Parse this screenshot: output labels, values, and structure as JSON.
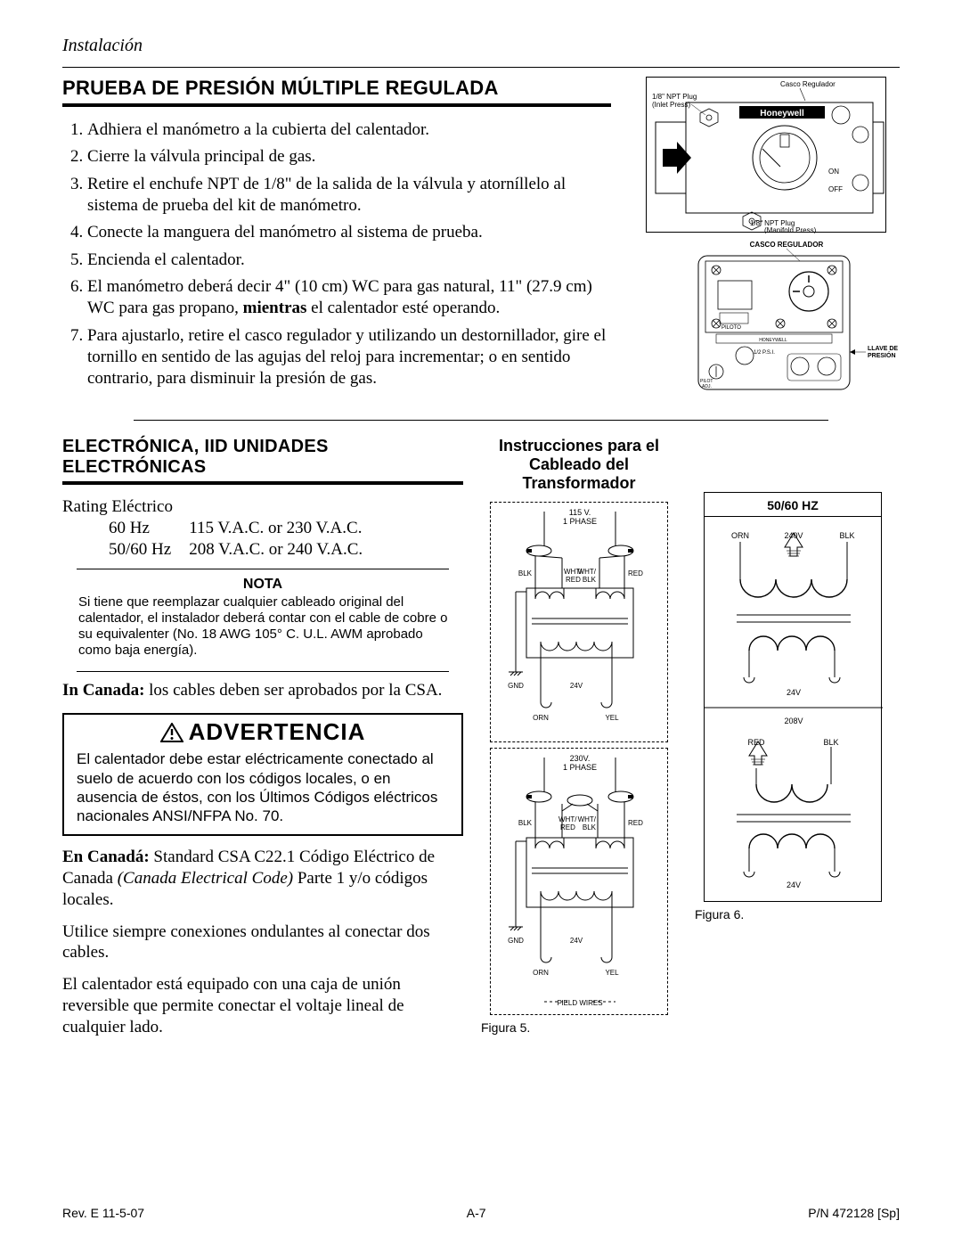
{
  "header": {
    "section": "Instalación"
  },
  "section1": {
    "heading": "PRUEBA DE PRESIÓN MÚLTIPLE REGULADA",
    "items": [
      "Adhiera el manómetro a la cubierta del calentador.",
      "Cierre la válvula principal de gas.",
      "Retire el enchufe NPT de 1/8\" de la salida de la válvula y atorníllelo al sistema de prueba del kit de manómetro.",
      "Conecte la manguera del manómetro al sistema de prueba.",
      "Encienda el calentador.",
      "El manómetro deberá decir 4\" (10 cm) WC para gas natural, 11\" (27.9 cm) WC para gas propano, mientras el calentador esté operando.",
      "Para ajustarlo, retire el casco regulador y utilizando un destornillador, gire el tornillo en sentido de las agujas del reloj para incrementar; o en sentido contrario, para disminuir la presión de gas."
    ],
    "diagram1": {
      "topRightLabel": "Casco Regulador",
      "brand": "Honeywell",
      "inletLabel1": "1/8\" NPT Plug",
      "inletLabel2": "(Inlet Press)",
      "onLabel": "ON",
      "offLabel": "OFF",
      "manifoldLabel1": "1/8\" NPT Plug",
      "manifoldLabel2": "(Manifold Press)"
    },
    "diagram2": {
      "topLabel": "CASCO REGULADOR",
      "piloto": "PILOTO",
      "honeywell": "HONEYWELL",
      "psi": "1/2 P.S.I.",
      "pilotAdj": "PILOT ADJ.",
      "pressureTap1": "LLAVE DE",
      "pressureTap2": "PRESIÓN"
    }
  },
  "section2": {
    "heading": "ELECTRÓNICA, IID UNIDADES ELECTRÓNICAS",
    "subheading1": "Instrucciones para el",
    "subheading2": "Cableado del Transformador",
    "ratingLabel": "Rating Eléctrico",
    "ratings": [
      [
        "60 Hz",
        "115 V.A.C. or 230 V.A.C."
      ],
      [
        "50/60 Hz",
        "208 V.A.C. or 240 V.A.C."
      ]
    ],
    "notaHead": "NOTA",
    "notaText": "Si tiene que reemplazar cualquier cableado original del calentador, el instalador deberá contar con el cable de cobre o su equivalenter (No. 18 AWG 105° C. U.L. AWM aprobado como baja energía).",
    "canadaBold": "In Canada:",
    "canadaText": " los cables deben ser aprobados por la CSA.",
    "warningTitle": "ADVERTENCIA",
    "warningText": "El calentador debe estar eléctricamente conectado al suelo de acuerdo con los códigos locales, o en ausencia de éstos, con los Últimos Códigos eléctricos nacionales ANSI/NFPA No. 70.",
    "para1Bold": "En Canadá:",
    "para1a": " Standard CSA C22.1 Código Eléctrico de Canada ",
    "para1Italic": "(Canada Electrical Code)",
    "para1b": " Parte 1 y/o códigos locales.",
    "para2": "Utilice siempre conexiones ondulantes al conectar dos cables.",
    "para3": "El calentador está equipado con una caja de unión reversible que permite conectar el voltaje lineal de cualquier lado.",
    "fig5": {
      "top1a": "115 V.",
      "top1b": "1 PHASE",
      "blk": "BLK",
      "whtred": "WHT/ RED",
      "whtblk": "WHT/ BLK",
      "red": "RED",
      "gnd": "GND",
      "v24": "24V",
      "orn": "ORN",
      "yel": "YEL",
      "top2a": "230V.",
      "top2b": "1 PHASE",
      "fieldWires": "FIELD WIRES",
      "caption": "Figura 5."
    },
    "fig6": {
      "heading": "50/60 HZ",
      "orn": "ORN",
      "v240": "240V",
      "blk": "BLK",
      "v24": "24V",
      "v208": "208V",
      "red": "RED",
      "caption": "Figura 6."
    }
  },
  "footer": {
    "left": "Rev. E  11-5-07",
    "center": "A-7",
    "right": "P/N  472128 [Sp]"
  }
}
